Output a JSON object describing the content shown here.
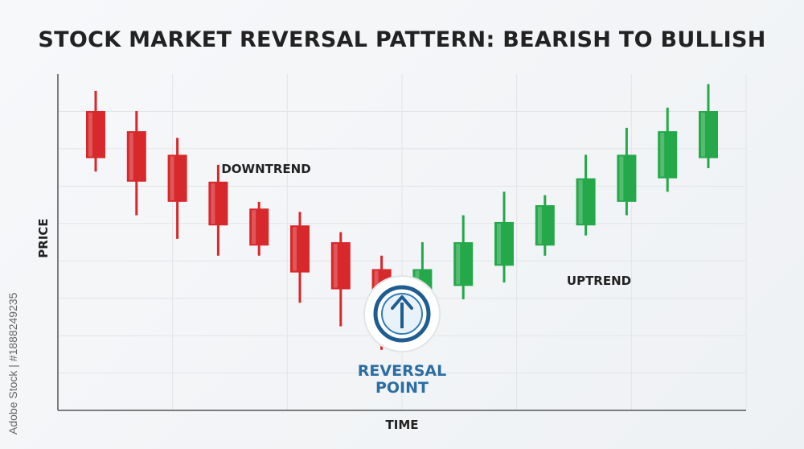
{
  "title": "STOCK MARKET REVERSAL PATTERN: BEARISH TO BULLISH",
  "side_credit": "Adobe Stock | #1888249235",
  "colors": {
    "bearish": "#d7282b",
    "bullish": "#25a84a",
    "grid": "#e2e4e8",
    "axis": "#555555",
    "reversal_text": "#2c6ea3"
  },
  "chart_data": {
    "type": "candlestick",
    "title": "STOCK MARKET REVERSAL PATTERN: BEARISH TO BULLISH",
    "xlabel": "TIME",
    "ylabel": "PRICE",
    "grid": true,
    "ylim": [
      0,
      100
    ],
    "annotations": {
      "downtrend": "DOWNTREND",
      "uptrend": "UPTREND",
      "reversal_line1": "REVERSAL",
      "reversal_line2": "POINT",
      "reversal_icon": "up-arrow-circle-icon"
    },
    "candles": [
      {
        "i": 0,
        "dir": "bear",
        "open": 89,
        "close": 75,
        "high": 95,
        "low": 71
      },
      {
        "i": 1,
        "dir": "bear",
        "open": 83,
        "close": 68,
        "high": 89,
        "low": 58
      },
      {
        "i": 2,
        "dir": "bear",
        "open": 76,
        "close": 62,
        "high": 81,
        "low": 51
      },
      {
        "i": 3,
        "dir": "bear",
        "open": 68,
        "close": 55,
        "high": 73,
        "low": 46
      },
      {
        "i": 4,
        "dir": "bear",
        "open": 60,
        "close": 49,
        "high": 62,
        "low": 46
      },
      {
        "i": 5,
        "dir": "bear",
        "open": 55,
        "close": 41,
        "high": 59,
        "low": 32
      },
      {
        "i": 6,
        "dir": "bear",
        "open": 50,
        "close": 36,
        "high": 53,
        "low": 25
      },
      {
        "i": 7,
        "dir": "bear",
        "open": 42,
        "close": 27,
        "high": 46,
        "low": 18
      },
      {
        "i": 8,
        "dir": "bull",
        "open": 28,
        "close": 42,
        "high": 50,
        "low": 24
      },
      {
        "i": 9,
        "dir": "bull",
        "open": 37,
        "close": 50,
        "high": 58,
        "low": 33
      },
      {
        "i": 10,
        "dir": "bull",
        "open": 43,
        "close": 56,
        "high": 65,
        "low": 38
      },
      {
        "i": 11,
        "dir": "bull",
        "open": 49,
        "close": 61,
        "high": 64,
        "low": 46
      },
      {
        "i": 12,
        "dir": "bull",
        "open": 55,
        "close": 69,
        "high": 76,
        "low": 52
      },
      {
        "i": 13,
        "dir": "bull",
        "open": 62,
        "close": 76,
        "high": 84,
        "low": 58
      },
      {
        "i": 14,
        "dir": "bull",
        "open": 69,
        "close": 83,
        "high": 90,
        "low": 65
      },
      {
        "i": 15,
        "dir": "bull",
        "open": 75,
        "close": 89,
        "high": 97,
        "low": 72
      }
    ]
  }
}
